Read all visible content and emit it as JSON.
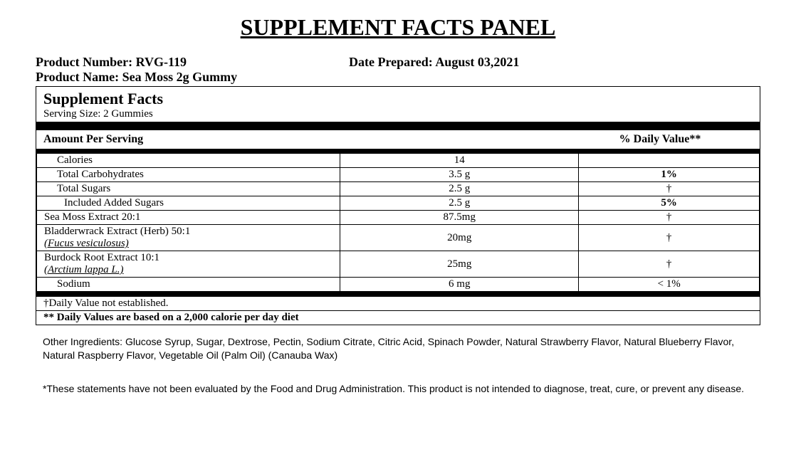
{
  "title": "SUPPLEMENT FACTS PANEL",
  "meta": {
    "product_number_label": "Product Number: ",
    "product_number": "RVG-119",
    "date_label": "Date Prepared: ",
    "date": "August 03,2021",
    "product_name_label": "Product Name: ",
    "product_name": "Sea Moss 2g Gummy"
  },
  "panel": {
    "sf_title": "Supplement Facts",
    "serving_size": "Serving Size: 2 Gummies",
    "aps": "Amount Per Serving",
    "dv_header": "% Daily Value**",
    "rows": [
      {
        "name": "Calories",
        "amount": "14",
        "dv": "",
        "indent": 1
      },
      {
        "name": "Total Carbohydrates",
        "amount": "3.5 g",
        "dv": "1%",
        "indent": 1,
        "dv_bold": true
      },
      {
        "name": "Total Sugars",
        "amount": "2.5 g",
        "dv": "†",
        "indent": 1
      },
      {
        "name": "Included Added Sugars",
        "amount": "2.5 g",
        "dv": "5%",
        "indent": 2,
        "dv_bold": true
      },
      {
        "name": "Sea Moss Extract 20:1",
        "amount": "87.5mg",
        "dv": "†",
        "indent": 0
      },
      {
        "name": "Bladderwrack Extract (Herb) 50:1",
        "sub": "(Fucus vesiculosus)",
        "amount": "20mg",
        "dv": "†",
        "indent": 0
      },
      {
        "name": "Burdock Root Extract 10:1",
        "sub": "(Arctium lappa L.)",
        "amount": "25mg",
        "dv": "†",
        "indent": 0
      },
      {
        "name": "Sodium",
        "amount": "6 mg",
        "dv": "< 1%",
        "indent": 1
      }
    ],
    "footnote1": "†Daily Value not established.",
    "footnote2": "** Daily Values are based on a 2,000 calorie per day diet"
  },
  "other_ingredients": "Other Ingredients: Glucose Syrup, Sugar, Dextrose, Pectin, Sodium Citrate, Citric Acid, Spinach Powder, Natural Strawberry Flavor, Natural Blueberry Flavor, Natural Raspberry Flavor, Vegetable Oil (Palm Oil) (Canauba Wax)",
  "disclaimer": "*These statements have not been evaluated by the Food and Drug Administration. This product is not intended to diagnose, treat, cure, or prevent any disease."
}
